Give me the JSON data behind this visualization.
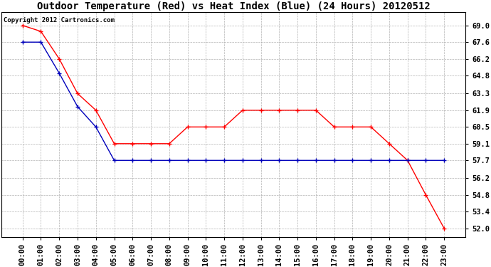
{
  "title": "Outdoor Temperature (Red) vs Heat Index (Blue) (24 Hours) 20120512",
  "copyright_text": "Copyright 2012 Cartronics.com",
  "x_labels": [
    "00:00",
    "01:00",
    "02:00",
    "03:00",
    "04:00",
    "05:00",
    "06:00",
    "07:00",
    "08:00",
    "09:00",
    "10:00",
    "11:00",
    "12:00",
    "13:00",
    "14:00",
    "15:00",
    "16:00",
    "17:00",
    "18:00",
    "19:00",
    "20:00",
    "21:00",
    "22:00",
    "23:00"
  ],
  "temp_red": [
    69.0,
    68.5,
    66.2,
    63.3,
    61.9,
    59.1,
    59.1,
    59.1,
    59.1,
    60.5,
    60.5,
    60.5,
    61.9,
    61.9,
    61.9,
    61.9,
    61.9,
    60.5,
    60.5,
    60.5,
    59.1,
    57.7,
    54.8,
    52.0
  ],
  "heat_blue": [
    67.6,
    67.6,
    65.0,
    62.2,
    60.5,
    57.7,
    57.7,
    57.7,
    57.7,
    57.7,
    57.7,
    57.7,
    57.7,
    57.7,
    57.7,
    57.7,
    57.7,
    57.7,
    57.7,
    57.7,
    57.7,
    57.7,
    57.7,
    57.7
  ],
  "ylim_min": 51.3,
  "ylim_max": 70.1,
  "y_ticks": [
    52.0,
    53.4,
    54.8,
    56.2,
    57.7,
    59.1,
    60.5,
    61.9,
    63.3,
    64.8,
    66.2,
    67.6,
    69.0
  ],
  "bg_color": "#ffffff",
  "plot_bg": "#ffffff",
  "grid_color": "#aaaaaa",
  "red_color": "#ff0000",
  "blue_color": "#0000bb",
  "title_fontsize": 10,
  "copyright_fontsize": 6.5,
  "tick_fontsize": 7.5
}
